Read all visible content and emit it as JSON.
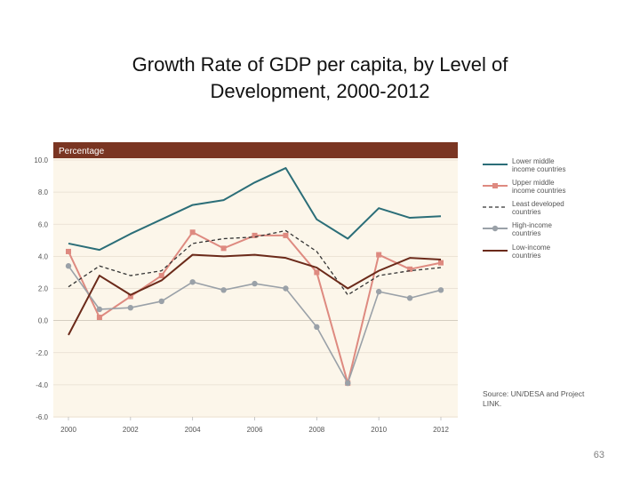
{
  "slide": {
    "title_line1": "Growth Rate of GDP per capita, by Level of",
    "title_line2": "Development, 2000-2012",
    "page_number": "63"
  },
  "colors": {
    "header_bg": "#7a3522",
    "plot_bg": "#fcf6ea",
    "grid": "#e6ddd0"
  },
  "chart_data": {
    "type": "line",
    "title": "Growth Rate of GDP per capita, by Level of Development, 2000-2012",
    "panel_label": "Percentage",
    "x": [
      2000,
      2001,
      2002,
      2003,
      2004,
      2005,
      2006,
      2007,
      2008,
      2009,
      2010,
      2011,
      2012
    ],
    "xticks": [
      "2000",
      "2002",
      "2004",
      "2006",
      "2008",
      "2010",
      "2012"
    ],
    "xlim": [
      2000,
      2012
    ],
    "yticks": [
      "10.0",
      "8.0",
      "6.0",
      "4.0",
      "2.0",
      "0.0",
      "-2.0",
      "-4.0",
      "-6.0"
    ],
    "ylim": [
      -6,
      10
    ],
    "legend_position": "right",
    "series": [
      {
        "name": "Lower middle income countries",
        "label_lines": [
          "Lower middle",
          "income countries"
        ],
        "color": "#2b6e78",
        "style": "solid",
        "marker": "none",
        "values": [
          4.8,
          4.4,
          5.4,
          6.3,
          7.2,
          7.5,
          8.6,
          9.5,
          6.3,
          5.1,
          7.0,
          6.4,
          6.5
        ]
      },
      {
        "name": "Upper middle income countries",
        "label_lines": [
          "Upper middle",
          "income countries"
        ],
        "color": "#de8a80",
        "style": "solid",
        "marker": "square",
        "values": [
          4.3,
          0.2,
          1.5,
          2.8,
          5.5,
          4.5,
          5.3,
          5.3,
          3.0,
          -3.9,
          4.1,
          3.2,
          3.6
        ]
      },
      {
        "name": "Least developed countries",
        "label_lines": [
          "Least developed",
          "countries"
        ],
        "color": "#333333",
        "style": "dashed",
        "marker": "none",
        "values": [
          2.1,
          3.4,
          2.8,
          3.1,
          4.8,
          5.1,
          5.2,
          5.6,
          4.3,
          1.6,
          2.8,
          3.1,
          3.3
        ]
      },
      {
        "name": "High-income countries",
        "label_lines": [
          "High-income",
          "countries"
        ],
        "color": "#9aa1a8",
        "style": "solid",
        "marker": "circle",
        "values": [
          3.4,
          0.7,
          0.8,
          1.2,
          2.4,
          1.9,
          2.3,
          2.0,
          -0.4,
          -3.9,
          1.8,
          1.4,
          1.9
        ]
      },
      {
        "name": "Low-income countries",
        "label_lines": [
          "Low-income",
          "countries"
        ],
        "color": "#6b2a1a",
        "style": "solid",
        "marker": "none",
        "values": [
          -0.9,
          2.8,
          1.6,
          2.5,
          4.1,
          4.0,
          4.1,
          3.9,
          3.3,
          2.0,
          3.1,
          3.9,
          3.8
        ]
      }
    ],
    "source_lines": [
      "Source: UN/DESA and Project",
      "LINK."
    ]
  }
}
